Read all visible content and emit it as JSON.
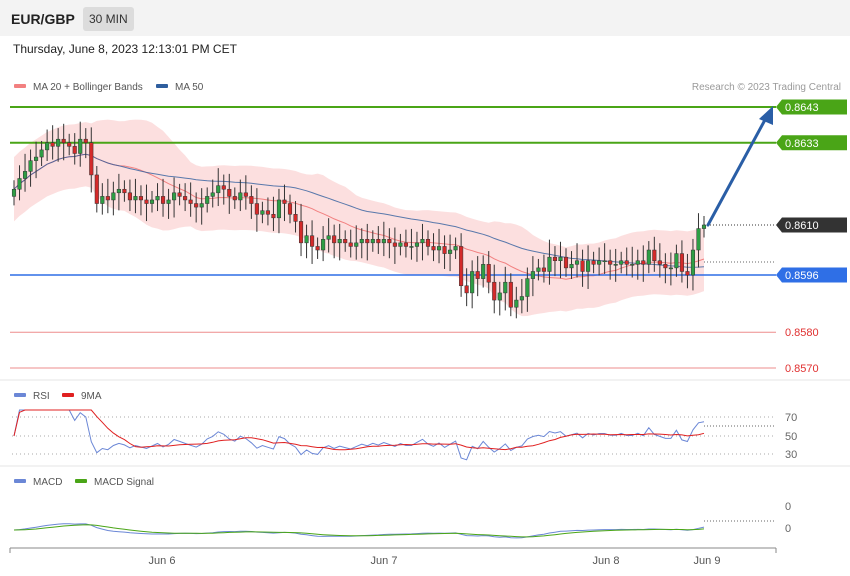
{
  "header": {
    "pair": "EUR/GBP",
    "timeframe": "30 MIN",
    "datetime": "Thursday, June 8, 2023 12:13:01 PM CET"
  },
  "legend": {
    "ma20": "MA 20 + Bollinger Bands",
    "ma50": "MA 50",
    "credit": "Research © 2023 Trading Central"
  },
  "colors": {
    "ma20": "#f28080",
    "ma50": "#2f5e9e",
    "bull": "#2e9e45",
    "bear": "#d42a2a",
    "band_fill": "#fbd9d9",
    "target": "#4aa517",
    "support": "#2f6fe6",
    "resistance_red": "#e03030",
    "last": "#333333",
    "arrow": "#2a5ea6",
    "rsi": "#6b87d6",
    "rsi_ma": "#e02020",
    "macd": "#6b87d6",
    "macd_signal": "#4aa517"
  },
  "chart_data": {
    "type": "candlestick",
    "x_ticks": [
      "Jun 6",
      "Jun 7",
      "Jun 8",
      "Jun 9"
    ],
    "levels": [
      {
        "value": 0.8643,
        "label": "0.8643",
        "kind": "target"
      },
      {
        "value": 0.8633,
        "label": "0.8633",
        "kind": "target"
      },
      {
        "value": 0.861,
        "label": "0.8610",
        "kind": "last"
      },
      {
        "value": 0.8596,
        "label": "0.8596",
        "kind": "support"
      },
      {
        "value": 0.858,
        "label": "0.8580",
        "kind": "resistance_red"
      },
      {
        "value": 0.857,
        "label": "0.8570",
        "kind": "resistance_red"
      }
    ],
    "ylim": [
      0.8565,
      0.8653
    ],
    "closes": [
      0.862,
      0.8623,
      0.8625,
      0.8628,
      0.8629,
      0.8631,
      0.8633,
      0.8632,
      0.8634,
      0.8633,
      0.8632,
      0.863,
      0.8634,
      0.8633,
      0.8624,
      0.8616,
      0.8618,
      0.8617,
      0.8619,
      0.862,
      0.8619,
      0.8617,
      0.8618,
      0.8617,
      0.8616,
      0.8617,
      0.8618,
      0.8616,
      0.8617,
      0.8619,
      0.8618,
      0.8617,
      0.8616,
      0.8615,
      0.8616,
      0.8618,
      0.8619,
      0.8621,
      0.862,
      0.8618,
      0.8617,
      0.8619,
      0.8618,
      0.8616,
      0.8613,
      0.8614,
      0.8613,
      0.8612,
      0.8617,
      0.8616,
      0.8613,
      0.8611,
      0.8605,
      0.8607,
      0.8604,
      0.8603,
      0.8606,
      0.8607,
      0.8605,
      0.8606,
      0.8605,
      0.8604,
      0.8605,
      0.8606,
      0.8605,
      0.8606,
      0.8605,
      0.8606,
      0.8605,
      0.8604,
      0.8605,
      0.8604,
      0.8604,
      0.8605,
      0.8606,
      0.8604,
      0.8603,
      0.8604,
      0.8602,
      0.8603,
      0.8604,
      0.8593,
      0.8591,
      0.8597,
      0.8595,
      0.8599,
      0.8594,
      0.8589,
      0.8591,
      0.8594,
      0.8587,
      0.8589,
      0.859,
      0.8595,
      0.8597,
      0.8598,
      0.8597,
      0.8601,
      0.86,
      0.8601,
      0.8598,
      0.8599,
      0.86,
      0.8597,
      0.86,
      0.8599,
      0.86,
      0.86,
      0.8599,
      0.8599,
      0.86,
      0.8599,
      0.8599,
      0.86,
      0.8599,
      0.8603,
      0.86,
      0.8599,
      0.8598,
      0.8598,
      0.8602,
      0.8597,
      0.8596,
      0.8603,
      0.8609,
      0.861
    ],
    "rsi": {
      "labels": [
        "70",
        "50",
        "30"
      ],
      "series": [
        "RSI",
        "9MA"
      ]
    },
    "macd": {
      "labels": [
        "0",
        "0"
      ],
      "series": [
        "MACD",
        "MACD Signal"
      ]
    }
  }
}
